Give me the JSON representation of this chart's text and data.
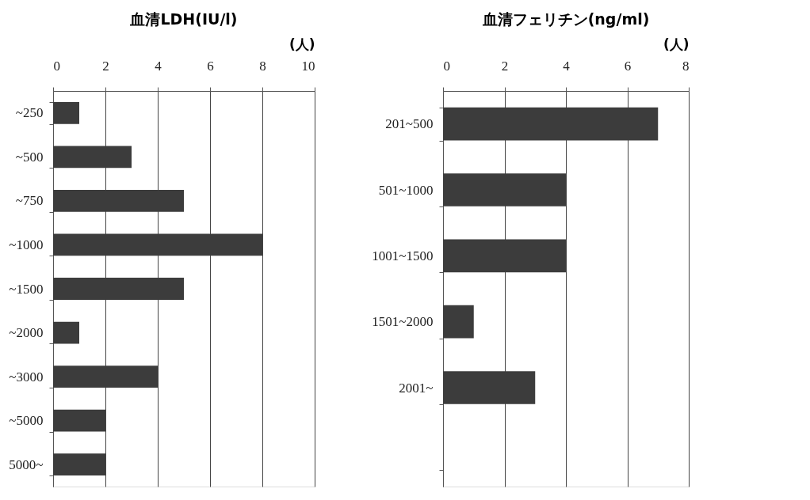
{
  "chart_data": [
    {
      "type": "bar",
      "orientation": "horizontal",
      "title": "血清LDH(IU/l)",
      "xlabel": "(人)",
      "categories": [
        "~250",
        "~500",
        "~750",
        "~1000",
        "~1500",
        "~2000",
        "~3000",
        "~5000",
        "5000~"
      ],
      "values": [
        1,
        3,
        5,
        8,
        5,
        1,
        4,
        2,
        2
      ],
      "color": "#3c3c3c",
      "xlim": [
        0,
        10
      ],
      "xticks": [
        0,
        2,
        4,
        6,
        8,
        10
      ],
      "grid": "x"
    },
    {
      "type": "bar",
      "orientation": "horizontal",
      "title": "血清フェリチン(ng/ml)",
      "xlabel": "(人)",
      "categories": [
        "201~500",
        "501~1000",
        "1001~1500",
        "1501~2000",
        "2001~",
        null
      ],
      "values": [
        7,
        4,
        4,
        1,
        3,
        null
      ],
      "color": "#3c3c3c",
      "xlim": [
        0,
        8
      ],
      "xticks": [
        0,
        2,
        4,
        6,
        8
      ],
      "grid": "x"
    }
  ]
}
